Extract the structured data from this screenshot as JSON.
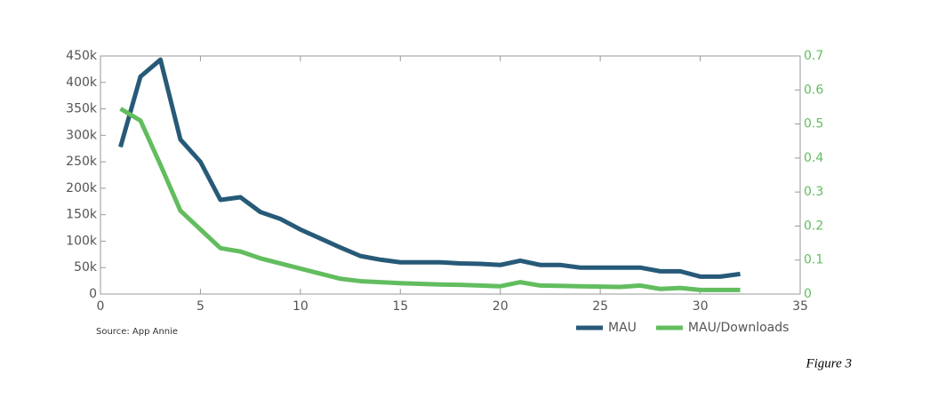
{
  "chart_data": {
    "type": "line",
    "source": "Source: App Annie",
    "caption": "Figure 3",
    "x": [
      1,
      2,
      3,
      4,
      5,
      6,
      7,
      8,
      9,
      10,
      11,
      12,
      13,
      14,
      15,
      16,
      17,
      18,
      19,
      20,
      21,
      22,
      23,
      24,
      25,
      26,
      27,
      28,
      29,
      30,
      31,
      32
    ],
    "series": [
      {
        "name": "MAU",
        "color": "#275a78",
        "axis": "y",
        "values": [
          278000,
          411000,
          443000,
          292000,
          250000,
          178000,
          183000,
          155000,
          142000,
          122000,
          105000,
          88000,
          72000,
          65000,
          60000,
          60000,
          60000,
          58000,
          57000,
          55000,
          63000,
          55000,
          55000,
          50000,
          50000,
          50000,
          50000,
          43000,
          43000,
          33000,
          33000,
          38000
        ]
      },
      {
        "name": "MAU/Downloads",
        "color": "#62bd5e",
        "axis": "y2",
        "values": [
          0.545,
          0.51,
          0.38,
          0.245,
          0.19,
          0.135,
          0.125,
          0.105,
          0.09,
          0.075,
          0.06,
          0.045,
          0.038,
          0.035,
          0.032,
          0.03,
          0.028,
          0.027,
          0.025,
          0.023,
          0.035,
          0.025,
          0.024,
          0.023,
          0.022,
          0.021,
          0.025,
          0.015,
          0.018,
          0.012,
          0.012,
          0.012
        ]
      }
    ],
    "xlim": [
      0,
      35
    ],
    "xticks": [
      0,
      5,
      10,
      15,
      20,
      25,
      30,
      35
    ],
    "ylim": [
      0,
      450000
    ],
    "yticks": [
      0,
      {
        "value": 50000,
        "label": "50k"
      },
      {
        "value": 100000,
        "label": "100k"
      },
      {
        "value": 150000,
        "label": "150k"
      },
      {
        "value": 200000,
        "label": "200k"
      },
      {
        "value": 250000,
        "label": "250k"
      },
      {
        "value": 300000,
        "label": "300k"
      },
      {
        "value": 350000,
        "label": "350k"
      },
      {
        "value": 400000,
        "label": "400k"
      },
      {
        "value": 450000,
        "label": "450k"
      }
    ],
    "y2lim": [
      0,
      0.7
    ],
    "y2ticks": [
      0,
      0.1,
      0.2,
      0.3,
      0.4,
      0.5,
      0.6,
      0.7
    ],
    "legend": "bottom-right"
  }
}
